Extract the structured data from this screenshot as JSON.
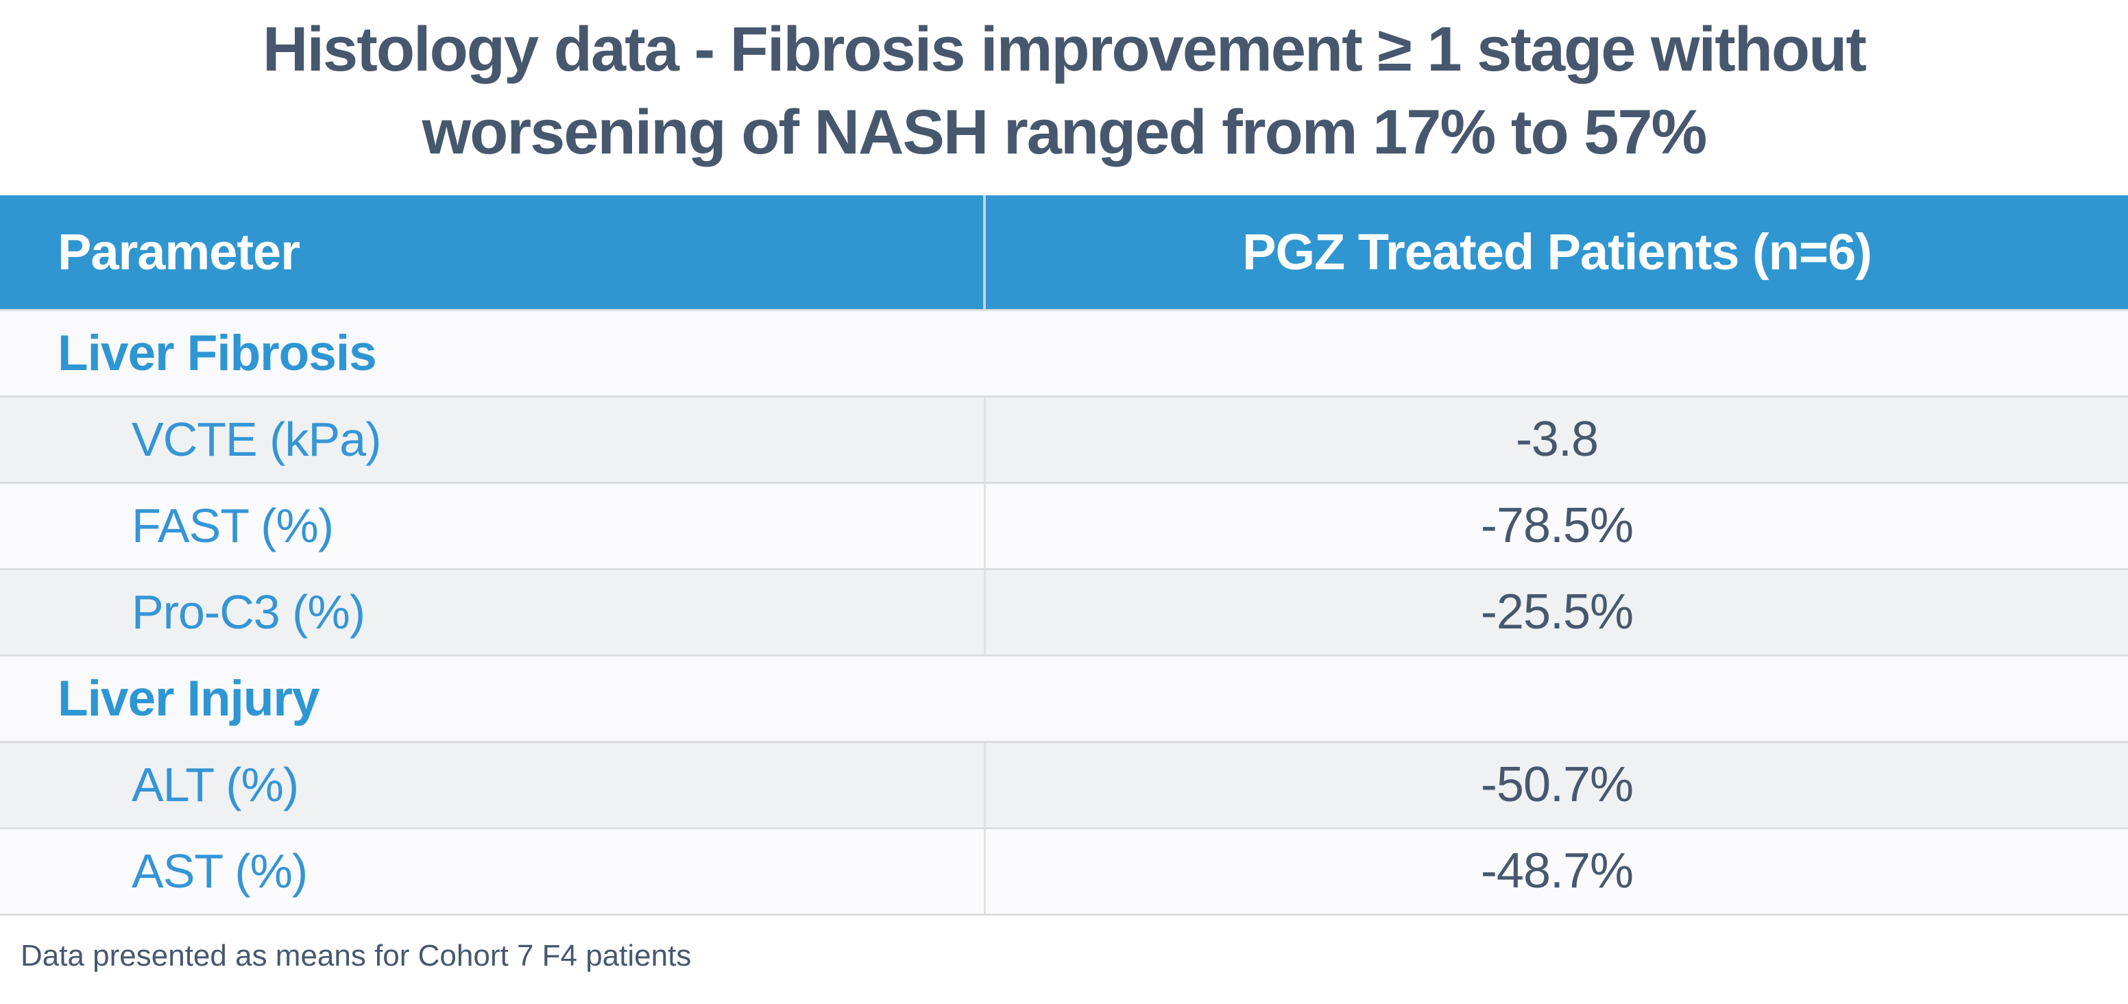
{
  "title": {
    "lines": [
      "Histology data - Fibrosis improvement ≥ 1 stage without",
      "worsening of NASH ranged from 17% to 57%"
    ]
  },
  "table": {
    "columns": {
      "parameter": "Parameter",
      "treated": "PGZ Treated Patients (n=6)"
    },
    "rows": [
      {
        "label": "Liver Fibrosis",
        "value": "",
        "kind": "section"
      },
      {
        "label": "VCTE (kPa)",
        "value": "-3.8",
        "kind": "data"
      },
      {
        "label": "FAST (%)",
        "value": "-78.5%",
        "kind": "data"
      },
      {
        "label": "Pro-C3 (%)",
        "value": "-25.5%",
        "kind": "data"
      },
      {
        "label": "Liver Injury",
        "value": "",
        "kind": "section"
      },
      {
        "label": "ALT (%)",
        "value": "-50.7%",
        "kind": "data"
      },
      {
        "label": "AST (%)",
        "value": "-48.7%",
        "kind": "data"
      }
    ]
  },
  "footnote": "Data presented as means for Cohort 7 F4 patients",
  "colors": {
    "header_bg": "#2F96D1",
    "section_label_blue": "#2E96D3",
    "row_label_blue": "#3595D6",
    "title_text": "#47586E",
    "value_text": "#47586E",
    "row_gray_bg": "#EFF1F2",
    "row_white_bg": "#FBFBFD",
    "section_row_bg": "#FAFAFC",
    "row_border": "#DBDDDF"
  },
  "chart_data": {
    "type": "table",
    "title": "Histology data - Fibrosis improvement ≥ 1 stage without worsening of NASH ranged from 17% to 57%",
    "columns": [
      "Parameter",
      "PGZ Treated Patients (n=6)"
    ],
    "sections": [
      {
        "name": "Liver Fibrosis",
        "rows": [
          {
            "parameter": "VCTE (kPa)",
            "value": -3.8,
            "display": "-3.8"
          },
          {
            "parameter": "FAST (%)",
            "value": -78.5,
            "display": "-78.5%"
          },
          {
            "parameter": "Pro-C3 (%)",
            "value": -25.5,
            "display": "-25.5%"
          }
        ]
      },
      {
        "name": "Liver Injury",
        "rows": [
          {
            "parameter": "ALT (%)",
            "value": -50.7,
            "display": "-50.7%"
          },
          {
            "parameter": "AST (%)",
            "value": -48.7,
            "display": "-48.7%"
          }
        ]
      }
    ],
    "footnote": "Data presented as means for Cohort 7 F4 patients"
  }
}
